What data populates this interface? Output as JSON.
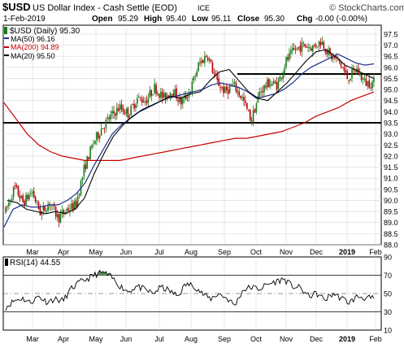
{
  "header": {
    "symbol": "$USD",
    "name": "US Dollar Index - Cash Settle (EOD)",
    "exchange": "ICE",
    "watermark": "© StockCharts.com",
    "date": "1-Feb-2019",
    "open_label": "Open",
    "open": "95.29",
    "high_label": "High",
    "high": "95.40",
    "low_label": "Low",
    "low": "95.11",
    "close_label": "Close",
    "close": "95.30",
    "chg_label": "Chg",
    "chg": "-0.00 (-0.00%)"
  },
  "legend": {
    "price": "$USD (Daily) 95.30",
    "ma50": "MA(50) 96.16",
    "ma200": "MA(200) 94.89",
    "ma20": "MA(20) 95.50"
  },
  "rsi_label": "RSI(14) 44.55",
  "colors": {
    "up": "#1a7a1a",
    "down": "#b00000",
    "ma50": "#1c2f8c",
    "ma200": "#c80000",
    "ma20": "#000000",
    "grid": "#d9d9d9",
    "rsi_fill": "#5d8f5d"
  },
  "chart_data": [
    {
      "type": "candlestick",
      "ylim": [
        88.0,
        97.9
      ],
      "yticks": [
        88.0,
        88.5,
        89.0,
        89.5,
        90.0,
        90.5,
        91.0,
        91.5,
        92.0,
        92.5,
        93.0,
        93.5,
        94.0,
        94.5,
        95.0,
        95.5,
        96.0,
        96.5,
        97.0,
        97.5
      ],
      "x_labels": [
        "Mar",
        "Apr",
        "May",
        "Jun",
        "Jul",
        "Aug",
        "Sep",
        "Oct",
        "Nov",
        "Dec",
        "2019",
        "Feb"
      ],
      "price_path": [
        89.5,
        90.6,
        89.9,
        90.4,
        89.4,
        89.9,
        89.2,
        89.6,
        89.8,
        91.5,
        92.6,
        93.3,
        93.8,
        94.2,
        93.9,
        94.6,
        94.5,
        95.1,
        94.6,
        95.0,
        94.4,
        94.9,
        96.1,
        96.6,
        95.4,
        94.9,
        95.2,
        94.6,
        93.6,
        94.9,
        95.3,
        95.2,
        96.3,
        96.8,
        97.0,
        96.9,
        97.2,
        96.5,
        96.3,
        95.5,
        95.9,
        95.3,
        95.3
      ],
      "ma50": [
        88.8,
        89.6,
        89.8,
        89.7,
        89.7,
        89.8,
        89.8,
        90.0,
        90.3,
        90.8,
        91.6,
        92.3,
        93.0,
        93.4,
        93.7,
        94.0,
        94.2,
        94.4,
        94.6,
        94.7,
        94.8,
        94.9,
        95.0,
        95.2,
        95.3,
        95.2,
        95.1,
        94.9,
        94.6,
        94.7,
        94.8,
        95.0,
        95.3,
        95.7,
        96.0,
        96.2,
        96.4,
        96.6,
        96.4,
        96.2,
        96.1,
        96.16
      ],
      "ma200": [
        94.4,
        93.7,
        93.0,
        92.5,
        92.2,
        92.0,
        91.9,
        91.8,
        91.8,
        91.8,
        91.8,
        91.9,
        92.0,
        92.1,
        92.2,
        92.3,
        92.4,
        92.5,
        92.6,
        92.7,
        92.8,
        92.8,
        92.9,
        93.0,
        93.1,
        93.3,
        93.5,
        93.8,
        94.0,
        94.2,
        94.5,
        94.7,
        94.89
      ],
      "ma20": [
        90.0,
        89.9,
        89.6,
        89.5,
        89.4,
        89.5,
        89.4,
        89.6,
        90.1,
        91.2,
        92.1,
        92.9,
        93.4,
        93.8,
        94.1,
        94.3,
        94.5,
        94.7,
        94.6,
        94.8,
        94.9,
        95.4,
        95.8,
        95.9,
        95.4,
        94.9,
        94.6,
        94.5,
        94.9,
        95.3,
        95.8,
        96.3,
        96.7,
        96.8,
        96.5,
        96.1,
        95.9,
        95.7,
        95.5
      ],
      "horizontal_lines": [
        95.7,
        93.5
      ]
    },
    {
      "type": "line",
      "title": "RSI(14) 44.55",
      "ylim": [
        10,
        90
      ],
      "yticks": [
        10,
        30,
        50,
        70,
        90
      ],
      "reference_lines": [
        30,
        70
      ],
      "x_labels": [
        "Mar",
        "Apr",
        "May",
        "Jun",
        "Jul",
        "Aug",
        "Sep",
        "Oct",
        "Nov",
        "Dec",
        "2019",
        "Feb"
      ],
      "values": [
        35,
        42,
        45,
        40,
        47,
        41,
        44,
        42,
        55,
        62,
        66,
        71,
        73,
        67,
        58,
        52,
        58,
        54,
        50,
        57,
        53,
        47,
        60,
        59,
        50,
        44,
        50,
        45,
        37,
        54,
        57,
        55,
        60,
        63,
        66,
        58,
        56,
        47,
        50,
        43,
        50,
        45,
        40,
        47,
        45,
        44.55
      ]
    }
  ]
}
